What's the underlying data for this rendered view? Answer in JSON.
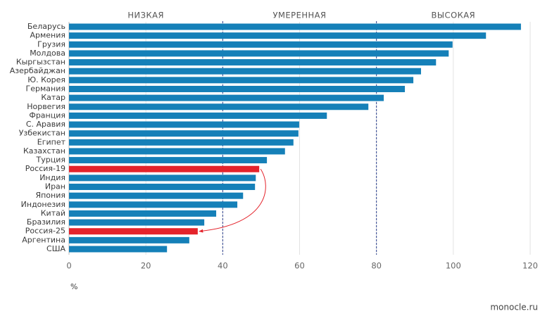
{
  "chart_data": {
    "type": "hbar",
    "categories": [
      "Беларусь",
      "Армения",
      "Грузия",
      "Молдова",
      "Кыргызстан",
      "Азербайджан",
      "Ю. Корея",
      "Германия",
      "Катар",
      "Норвегия",
      "Франция",
      "С. Аравия",
      "Узбекистан",
      "Египет",
      "Казахстан",
      "Турция",
      "Россия-19",
      "Индия",
      "Иран",
      "Япония",
      "Индонезия",
      "Китай",
      "Бразилия",
      "Россия-25",
      "Аргентина",
      "США"
    ],
    "values": [
      117.6,
      108.5,
      99.8,
      98.8,
      95.5,
      91.6,
      89.6,
      87.4,
      81.9,
      77.9,
      67.1,
      59.9,
      59.7,
      58.4,
      56.2,
      51.5,
      49.5,
      48.6,
      48.4,
      45.3,
      43.8,
      38.3,
      35.2,
      33.5,
      31.3,
      25.5
    ],
    "colors": [
      "#1580b8",
      "#1580b8",
      "#1580b8",
      "#1580b8",
      "#1580b8",
      "#1580b8",
      "#1580b8",
      "#1580b8",
      "#1580b8",
      "#1580b8",
      "#1580b8",
      "#1580b8",
      "#1580b8",
      "#1580b8",
      "#1580b8",
      "#1580b8",
      "#e4232b",
      "#1580b8",
      "#1580b8",
      "#1580b8",
      "#1580b8",
      "#1580b8",
      "#1580b8",
      "#e4232b",
      "#1580b8",
      "#1580b8"
    ],
    "xlim": [
      0,
      120
    ],
    "xticks": [
      0,
      20,
      40,
      60,
      80,
      100,
      120
    ],
    "grid": true,
    "x_label": "%",
    "zones": [
      {
        "label": "НИЗКАЯ",
        "start": 0,
        "end": 40
      },
      {
        "label": "УМЕРЕННАЯ",
        "start": 40,
        "end": 80
      },
      {
        "label": "ВЫСОКАЯ",
        "start": 80,
        "end": 120
      }
    ],
    "source": "monocle.ru"
  }
}
